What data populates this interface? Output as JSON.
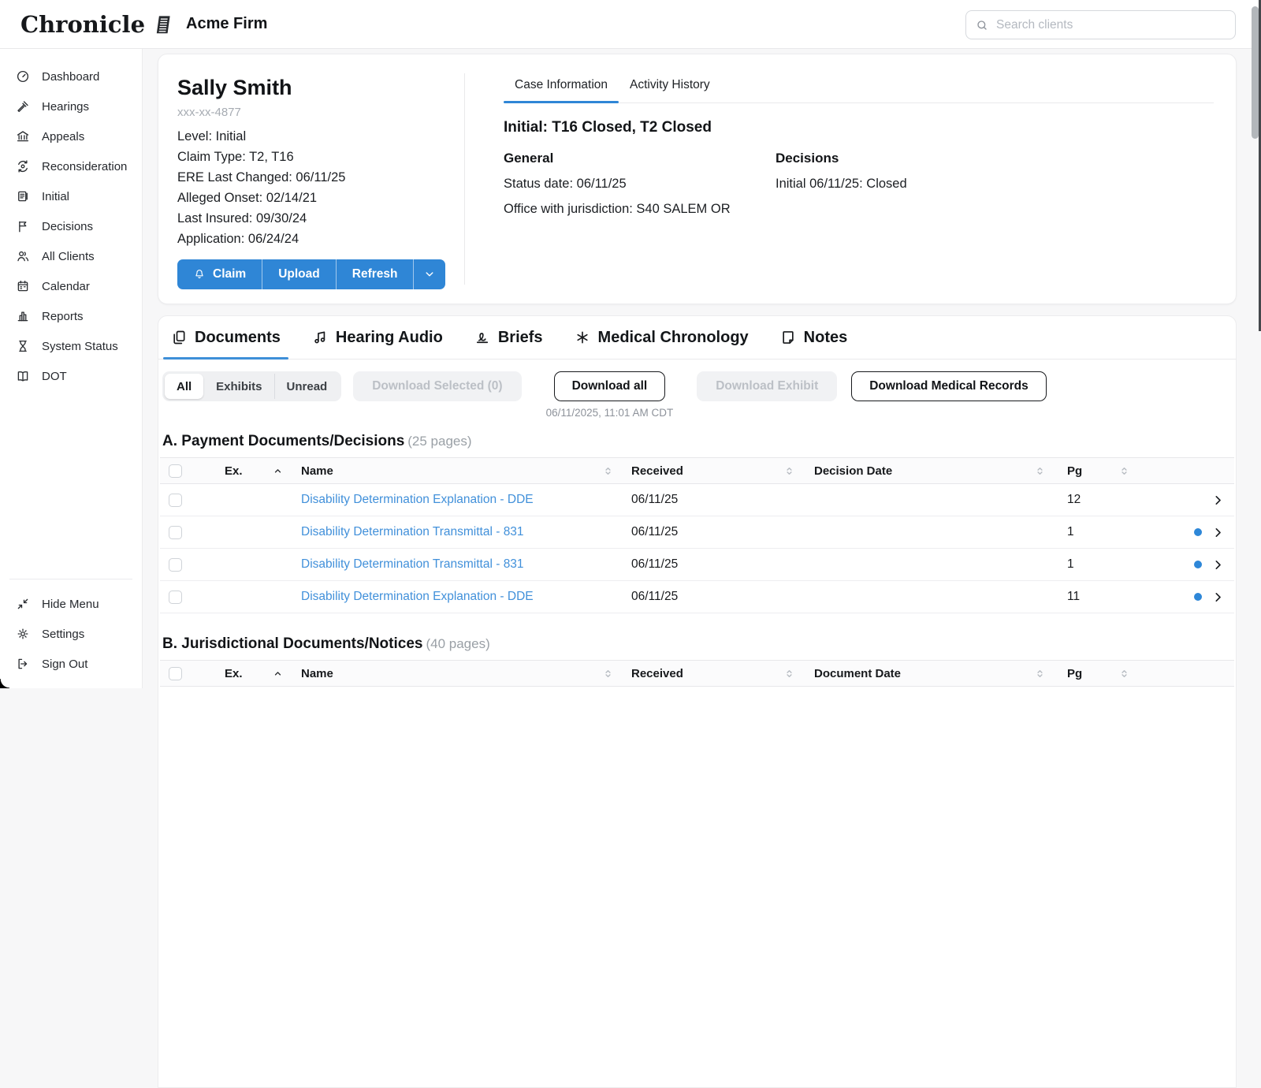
{
  "brand": {
    "name": "Chronicle",
    "firm": "Acme Firm"
  },
  "search": {
    "placeholder": "Search clients"
  },
  "sidebar": {
    "items": [
      {
        "icon": "dashboard",
        "label": "Dashboard"
      },
      {
        "icon": "gavel",
        "label": "Hearings"
      },
      {
        "icon": "bank",
        "label": "Appeals"
      },
      {
        "icon": "reconsideration",
        "label": "Reconsideration"
      },
      {
        "icon": "document",
        "label": "Initial"
      },
      {
        "icon": "flag",
        "label": "Decisions"
      },
      {
        "icon": "people",
        "label": "All Clients"
      },
      {
        "icon": "calendar",
        "label": "Calendar"
      },
      {
        "icon": "bar-chart",
        "label": "Reports"
      },
      {
        "icon": "hourglass",
        "label": "System Status"
      },
      {
        "icon": "book",
        "label": "DOT"
      }
    ],
    "footer_items": [
      {
        "icon": "collapse",
        "label": "Hide Menu"
      },
      {
        "icon": "gear",
        "label": "Settings"
      },
      {
        "icon": "sign-out",
        "label": "Sign Out"
      }
    ]
  },
  "client": {
    "name": "Sally Smith",
    "ssn": "xxx-xx-4877",
    "details": [
      "Level: Initial",
      "Claim Type: T2, T16",
      "ERE Last Changed: 06/11/25",
      "Alleged Onset: 02/14/21",
      "Last Insured: 09/30/24",
      "Application: 06/24/24"
    ],
    "actions": {
      "claim": "Claim",
      "upload": "Upload",
      "refresh": "Refresh"
    }
  },
  "case_panel": {
    "tabs": [
      {
        "label": "Case Information",
        "active": true
      },
      {
        "label": "Activity History",
        "active": false
      }
    ],
    "heading": "Initial: T16 Closed, T2 Closed",
    "general": {
      "title": "General",
      "lines": [
        "Status date: 06/11/25",
        "Office with jurisdiction: S40 SALEM OR"
      ]
    },
    "decisions": {
      "title": "Decisions",
      "lines": [
        "Initial 06/11/25: Closed"
      ]
    }
  },
  "doc_tabs": [
    {
      "icon": "pages",
      "label": "Documents",
      "active": true
    },
    {
      "icon": "music",
      "label": "Hearing Audio",
      "active": false
    },
    {
      "icon": "signature",
      "label": "Briefs",
      "active": false
    },
    {
      "icon": "asterisk",
      "label": "Medical Chronology",
      "active": false
    },
    {
      "icon": "note",
      "label": "Notes",
      "active": false
    }
  ],
  "toolbar": {
    "segments": [
      {
        "label": "All",
        "selected": true
      },
      {
        "label": "Exhibits",
        "selected": false
      },
      {
        "label": "Unread",
        "selected": false
      }
    ],
    "download_selected": "Download Selected (0)",
    "download_all": "Download all",
    "download_exhibit": "Download Exhibit",
    "download_medical": "Download Medical Records",
    "timestamp": "06/11/2025, 11:01 AM CDT"
  },
  "sections": [
    {
      "title": "A. Payment Documents/Decisions",
      "pages": "(25 pages)",
      "columns": {
        "ex": "Ex.",
        "name": "Name",
        "received": "Received",
        "date": "Decision Date",
        "pg": "Pg"
      },
      "rows": [
        {
          "name": "Disability Determination Explanation - DDE",
          "received": "06/11/25",
          "decision_date": "",
          "pg": "12",
          "unread": false
        },
        {
          "name": "Disability Determination Transmittal - 831",
          "received": "06/11/25",
          "decision_date": "",
          "pg": "1",
          "unread": true
        },
        {
          "name": "Disability Determination Transmittal - 831",
          "received": "06/11/25",
          "decision_date": "",
          "pg": "1",
          "unread": true
        },
        {
          "name": "Disability Determination Explanation - DDE",
          "received": "06/11/25",
          "decision_date": "",
          "pg": "11",
          "unread": true
        }
      ]
    },
    {
      "title": "B. Jurisdictional Documents/Notices",
      "pages": "(40 pages)",
      "columns": {
        "ex": "Ex.",
        "name": "Name",
        "received": "Received",
        "date": "Document Date",
        "pg": "Pg"
      },
      "rows": []
    }
  ],
  "colors": {
    "accent_blue": "#2f86d6",
    "link_blue": "#4190da",
    "unread_dot": "#2e87d8"
  }
}
